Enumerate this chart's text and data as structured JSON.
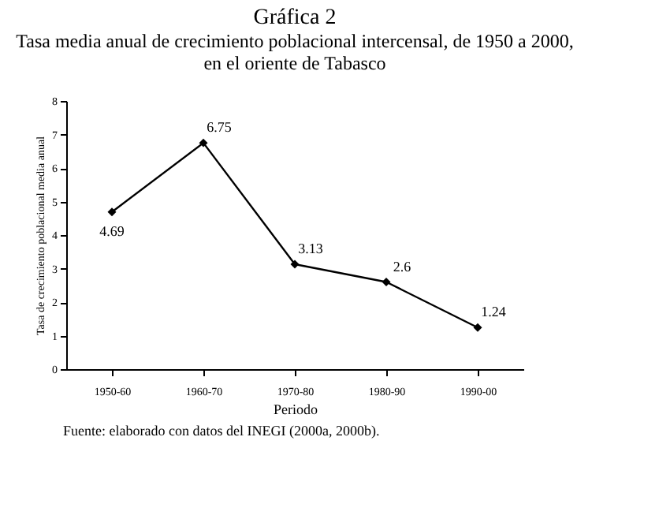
{
  "chart_data": {
    "type": "line",
    "title": "Gráfica 2",
    "subtitle": "Tasa media anual de crecimiento poblacional intercensal, de 1950 a 2000,\nen el oriente de Tabasco",
    "xlabel": "Periodo",
    "ylabel": "Tasa de crecimiento poblacional media anual",
    "categories": [
      "1950-60",
      "1960-70",
      "1970-80",
      "1980-90",
      "1990-00"
    ],
    "series": [
      {
        "color": "#000000",
        "values": [
          4.69,
          6.75,
          3.13,
          2.6,
          1.24
        ]
      }
    ],
    "ylim": [
      0,
      8
    ],
    "yticks": [
      0,
      1,
      2,
      3,
      4,
      5,
      6,
      7,
      8
    ],
    "data_labels": true,
    "marker": "diamond",
    "grid": false,
    "legend": false,
    "annotations": [
      "Fuente: elaborado con datos del INEGI (2000a, 2000b)."
    ]
  }
}
